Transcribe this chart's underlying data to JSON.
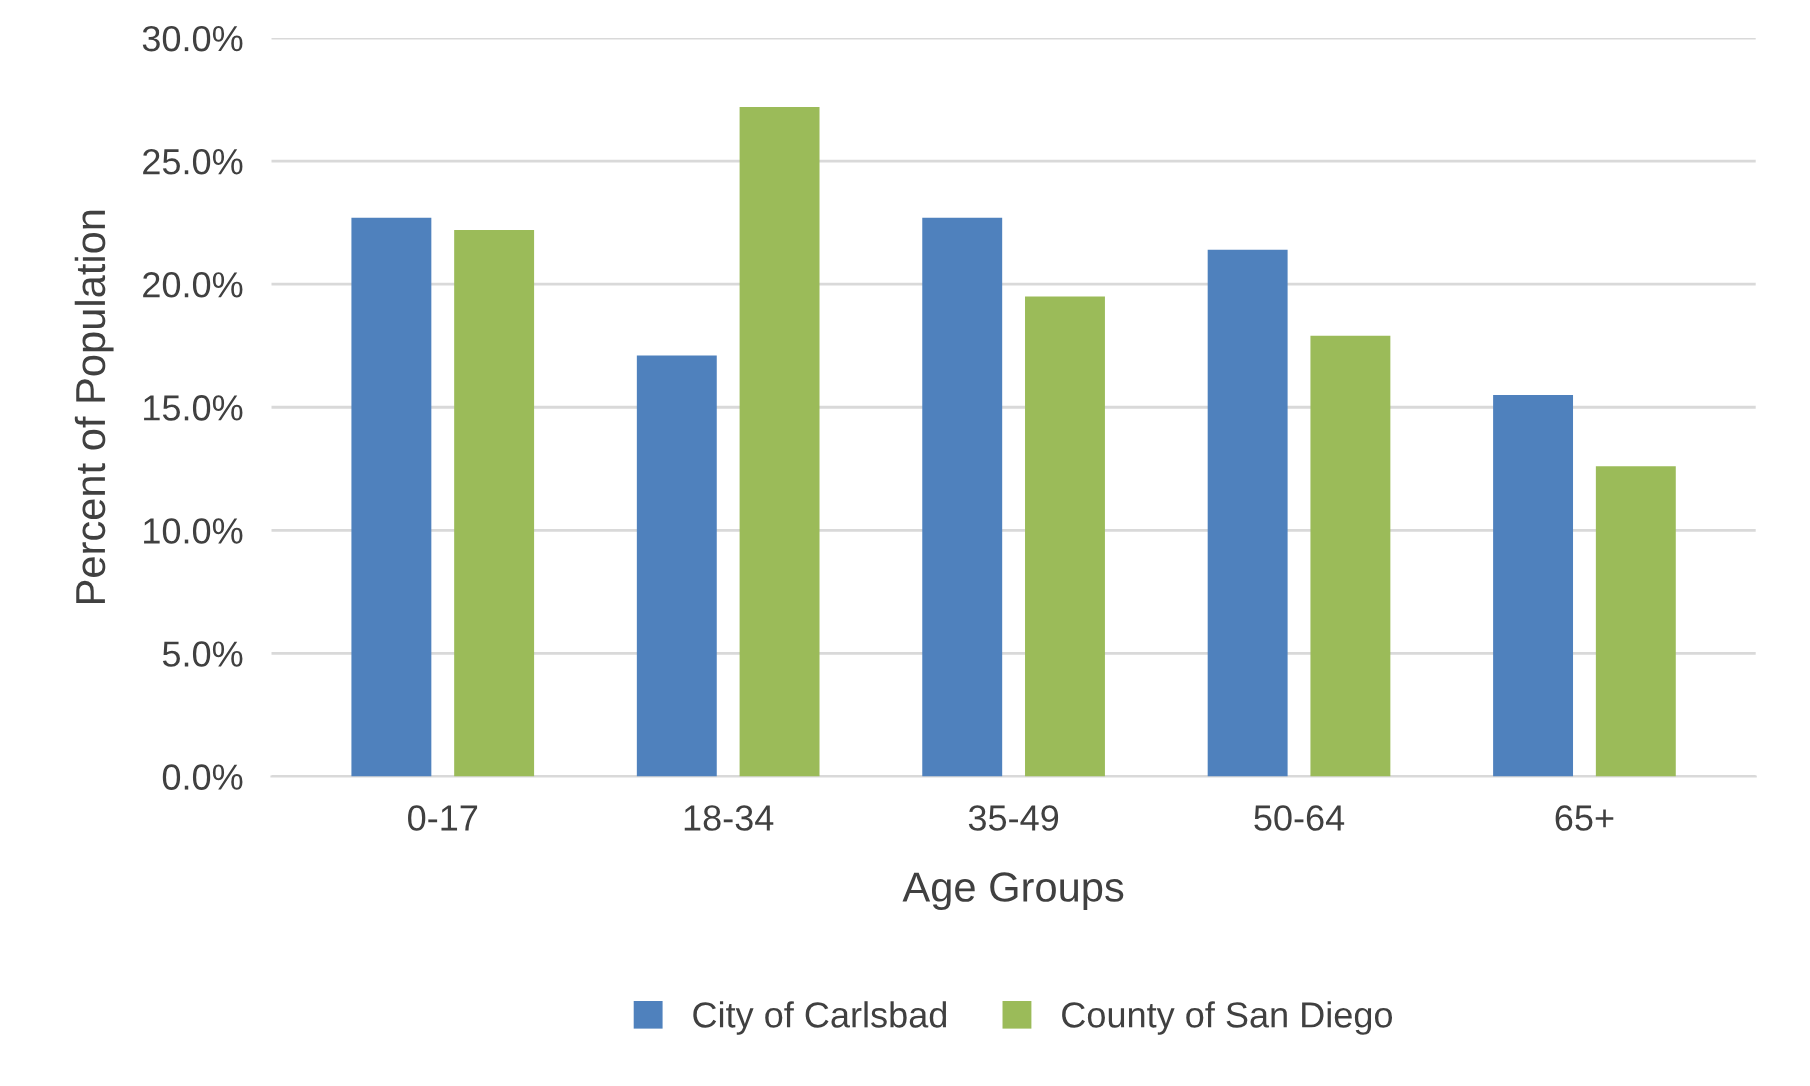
{
  "chart_data": {
    "type": "bar",
    "xlabel": "Age Groups",
    "ylabel": "Percent of Population",
    "categories": [
      "0-17",
      "18-34",
      "35-49",
      "50-64",
      "65+"
    ],
    "series": [
      {
        "name": "City of Carlsbad",
        "color": "#4f81bd",
        "values": [
          22.7,
          17.1,
          22.7,
          21.4,
          15.5
        ]
      },
      {
        "name": "County of San Diego",
        "color": "#9bbb59",
        "values": [
          22.2,
          27.2,
          19.5,
          17.9,
          12.6
        ]
      }
    ],
    "ylim": [
      0,
      30
    ],
    "yticks": [
      {
        "value": 0,
        "label": "0.0%"
      },
      {
        "value": 5,
        "label": "5.0%"
      },
      {
        "value": 10,
        "label": "10.0%"
      },
      {
        "value": 15,
        "label": "15.0%"
      },
      {
        "value": 20,
        "label": "20.0%"
      },
      {
        "value": 25,
        "label": "25.0%"
      },
      {
        "value": 30,
        "label": "30.0%"
      }
    ],
    "grid": "y",
    "legend": "bottom"
  }
}
